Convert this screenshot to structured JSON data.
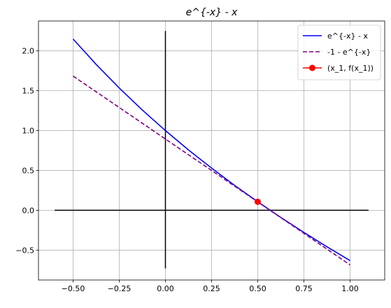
{
  "chart_data": {
    "type": "line",
    "title": "e^{-x} - x",
    "xlabel": "",
    "ylabel": "",
    "xlim": [
      -0.6875,
      1.1875
    ],
    "ylim": [
      -0.875,
      2.375
    ],
    "x_ticks": [
      -0.5,
      -0.25,
      0.0,
      0.25,
      0.5,
      0.75,
      1.0
    ],
    "x_tick_labels": [
      "−0.50",
      "−0.25",
      "0.00",
      "0.25",
      "0.50",
      "0.75",
      "1.00"
    ],
    "y_ticks": [
      -0.5,
      0.0,
      0.5,
      1.0,
      1.5,
      2.0
    ],
    "y_tick_labels": [
      "−0.5",
      "0.0",
      "0.5",
      "1.0",
      "1.5",
      "2.0"
    ],
    "grid": true,
    "legend_position": "top-right",
    "axis_lines": [
      {
        "x": [
          -0.6,
          1.1
        ],
        "y": [
          0.0,
          0.0
        ],
        "color": "#000000"
      },
      {
        "x": [
          0.0,
          0.0
        ],
        "y": [
          -0.73,
          2.25
        ],
        "color": "#000000"
      }
    ],
    "series": [
      {
        "name": "e^{-x} - x",
        "style": "solid",
        "color": "#0000ff",
        "x": [
          -0.5,
          -0.375,
          -0.25,
          -0.125,
          0.0,
          0.125,
          0.25,
          0.375,
          0.5,
          0.625,
          0.75,
          0.875,
          1.0
        ],
        "y": [
          2.149,
          1.83,
          1.534,
          1.258,
          1.0,
          0.757,
          0.529,
          0.312,
          0.107,
          -0.09,
          -0.278,
          -0.458,
          -0.632
        ]
      },
      {
        "name": "-1 - e^{-x}",
        "style": "dashed",
        "color": "#800080",
        "x": [
          -0.5,
          1.0
        ],
        "y": [
          1.684,
          -0.685
        ]
      },
      {
        "name": "(x_1, f(x_1))",
        "style": "marker",
        "color": "#ff0000",
        "x": [
          0.5
        ],
        "y": [
          0.107
        ]
      }
    ]
  }
}
